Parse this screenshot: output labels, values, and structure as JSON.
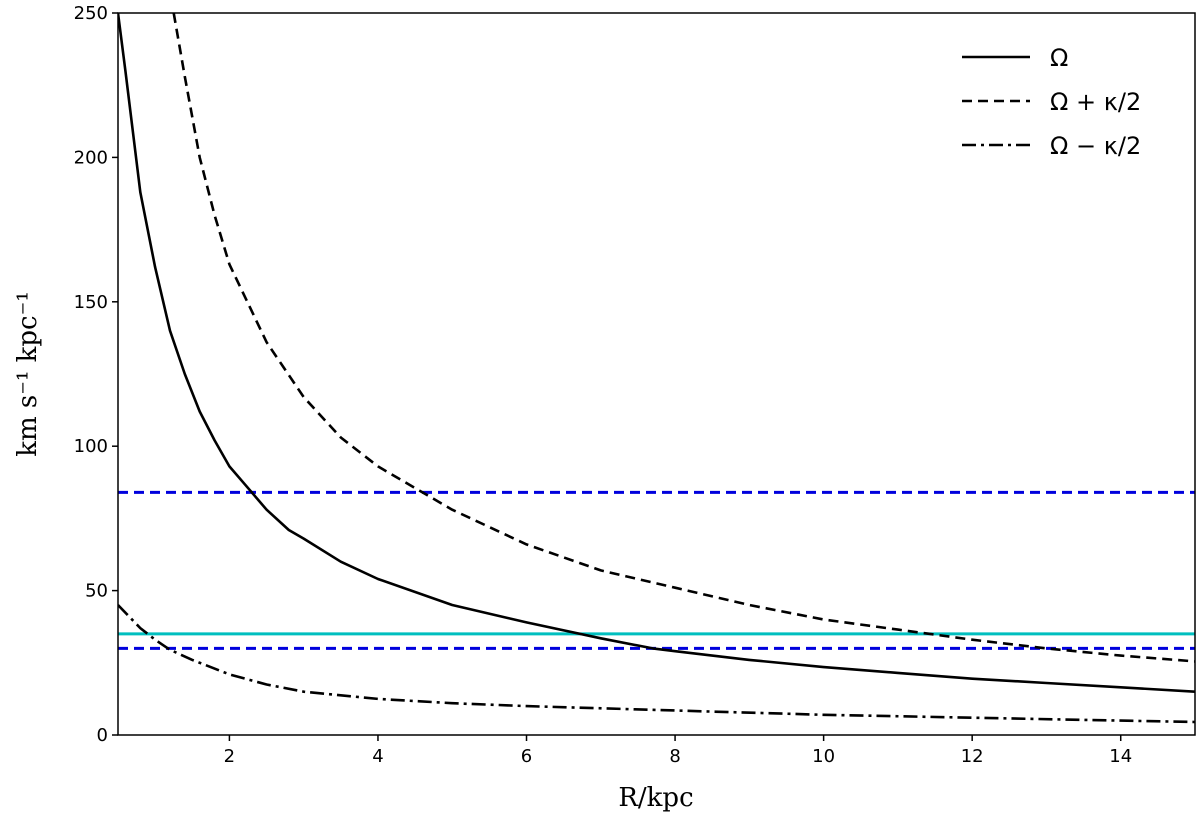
{
  "chart_data": {
    "type": "line",
    "xlabel": "R/kpc",
    "ylabel": "km s⁻¹ kpc⁻¹",
    "xlim": [
      0.5,
      15
    ],
    "ylim": [
      0,
      250
    ],
    "xticks": [
      2,
      4,
      6,
      8,
      10,
      12,
      14
    ],
    "yticks": [
      0,
      50,
      100,
      150,
      200,
      250
    ],
    "grid": false,
    "legend_position": "top-right",
    "series": [
      {
        "name": "Ω",
        "style": "solid",
        "color": "#000000",
        "x": [
          0.5,
          0.6,
          0.8,
          1.0,
          1.2,
          1.4,
          1.6,
          1.8,
          2.0,
          2.2,
          2.5,
          2.8,
          3.0,
          3.5,
          4.0,
          5.0,
          6.0,
          7.0,
          7.7,
          8.0,
          9.0,
          10.0,
          11.0,
          12.0,
          13.0,
          14.0,
          15.0
        ],
        "y": [
          250,
          230,
          188,
          162,
          140,
          125,
          112,
          102,
          93,
          87,
          78,
          71,
          68,
          60,
          54,
          45,
          39,
          33.5,
          30,
          29,
          26,
          23.5,
          21.5,
          19.5,
          18,
          16.5,
          15
        ]
      },
      {
        "name": "Ω + κ/2",
        "style": "dashed",
        "color": "#000000",
        "x": [
          1.25,
          1.4,
          1.6,
          1.8,
          2.0,
          2.5,
          3.0,
          3.5,
          4.0,
          4.6,
          5.0,
          6.0,
          7.0,
          8.0,
          9.0,
          10.0,
          11.0,
          12.0,
          13.0,
          14.0,
          15.0
        ],
        "y": [
          250,
          228,
          200,
          180,
          163,
          136,
          117,
          103,
          93,
          84,
          78,
          66,
          57,
          51,
          45,
          40,
          36.5,
          33,
          30,
          27.5,
          25.5
        ]
      },
      {
        "name": "Ω − κ/2",
        "style": "dashdot",
        "color": "#000000",
        "x": [
          0.5,
          0.8,
          1.0,
          1.2,
          1.5,
          2.0,
          2.5,
          3.0,
          4.0,
          5.0,
          6.0,
          8.0,
          10.0,
          12.0,
          14.0,
          15.0
        ],
        "y": [
          45,
          37,
          33,
          29.5,
          26,
          21,
          17.5,
          15,
          12.5,
          11,
          10,
          8.5,
          7,
          6,
          5,
          4.5
        ]
      }
    ],
    "hlines": [
      {
        "y": 84,
        "style": "dashed",
        "color": "#0000dd"
      },
      {
        "y": 30,
        "style": "dashed",
        "color": "#0000dd"
      },
      {
        "y": 35,
        "style": "solid",
        "color": "#00bfbf"
      }
    ]
  }
}
